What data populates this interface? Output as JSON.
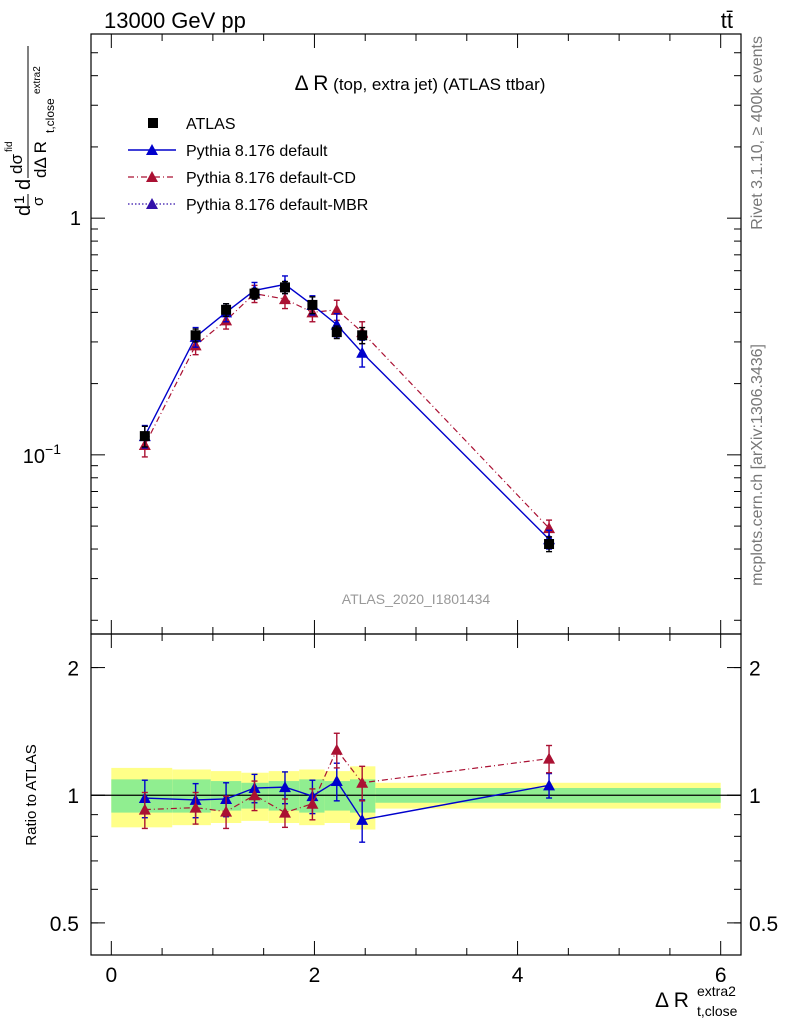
{
  "header": {
    "energy_label": "13000 GeV pp",
    "process_label": "tt̄"
  },
  "side_labels": {
    "rivet": "Rivet 3.1.10, ≥ 400k events",
    "mcplots": "mcplots.cern.ch [arXiv:1306.3436]"
  },
  "main_panel": {
    "title": "Δ R (top, extra jet) (ATLAS ttbar)",
    "title_delta": "Δ R",
    "title_rest": " (top, extra jet) (ATLAS ttbar)",
    "analysis_id": "ATLAS_2020_I1801434",
    "ylabel_parts": {
      "d": "d",
      "one": "1",
      "sigma": "σ",
      "dsigma": "dσ",
      "fid": "fid",
      "dDeltaR": "dΔ R",
      "sub": "t,close",
      "sup": "extra2"
    }
  },
  "ratio_panel": {
    "ylabel": "Ratio to ATLAS"
  },
  "x_axis": {
    "label_main": "Δ R",
    "label_sup": "extra2",
    "label_sub": "t,close"
  },
  "colors": {
    "atlas": "#000000",
    "default": "#0000cc",
    "cd": "#aa1133",
    "mbr": "#3311aa",
    "band_inner": "#90ee90",
    "band_outer": "#ffff88"
  },
  "chart_data": [
    {
      "type": "scatter",
      "panel": "main",
      "title": "Δ R (top, extra jet) (ATLAS ttbar)",
      "xlabel": "Δ R t,close extra2",
      "ylabel": "1/σ dσfid / dΔ R t,close extra2",
      "xlim": [
        -0.2,
        6.2
      ],
      "ylim": [
        0.0175,
        6.0
      ],
      "yscale": "log",
      "xticks": [
        0,
        2,
        4,
        6
      ],
      "yticks": [
        {
          "value": 0.1,
          "base": "10",
          "exp": "−1"
        },
        {
          "value": 1,
          "label": "1"
        }
      ],
      "legend_position": "top-left",
      "x": [
        0.33,
        0.83,
        1.13,
        1.41,
        1.71,
        1.98,
        2.22,
        2.47,
        4.31
      ],
      "series": [
        {
          "name": "ATLAS",
          "marker": "square",
          "line": "none",
          "values": [
            0.12,
            0.32,
            0.41,
            0.48,
            0.51,
            0.43,
            0.33,
            0.32,
            0.042
          ],
          "err": [
            0.012,
            0.02,
            0.025,
            0.025,
            0.03,
            0.035,
            0.02,
            0.025,
            0.003
          ]
        },
        {
          "name": "Pythia 8.176 default",
          "marker": "triangle",
          "line": "solid",
          "values": [
            0.12,
            0.315,
            0.4,
            0.495,
            0.525,
            0.43,
            0.355,
            0.27,
            0.044
          ],
          "err": [
            0.013,
            0.03,
            0.035,
            0.04,
            0.045,
            0.04,
            0.04,
            0.035,
            0.004
          ]
        },
        {
          "name": "Pythia 8.176 default-CD",
          "marker": "triangle",
          "line": "dashdot",
          "values": [
            0.11,
            0.29,
            0.37,
            0.48,
            0.455,
            0.4,
            0.41,
            0.33,
            0.049
          ],
          "err": [
            0.012,
            0.025,
            0.03,
            0.04,
            0.04,
            0.035,
            0.04,
            0.035,
            0.004
          ]
        },
        {
          "name": "Pythia 8.176 default-MBR",
          "marker": "triangle",
          "line": "dotted",
          "values": [],
          "err": []
        }
      ]
    },
    {
      "type": "scatter",
      "panel": "ratio",
      "ylabel": "Ratio to ATLAS",
      "xlim": [
        -0.2,
        6.2
      ],
      "ylim": [
        0.42,
        2.4
      ],
      "yscale": "log",
      "yticks": [
        0.5,
        1,
        2
      ],
      "x": [
        0.33,
        0.83,
        1.13,
        1.41,
        1.71,
        1.98,
        2.22,
        2.47,
        4.31
      ],
      "bands": [
        {
          "xmin": 0.0,
          "xmax": 0.6,
          "inner": [
            0.91,
            1.09
          ],
          "outer": [
            0.84,
            1.16
          ]
        },
        {
          "xmin": 0.6,
          "xmax": 0.98,
          "inner": [
            0.91,
            1.09
          ],
          "outer": [
            0.85,
            1.15
          ]
        },
        {
          "xmin": 0.98,
          "xmax": 1.28,
          "inner": [
            0.92,
            1.08
          ],
          "outer": [
            0.86,
            1.14
          ]
        },
        {
          "xmin": 1.28,
          "xmax": 1.55,
          "inner": [
            0.93,
            1.07
          ],
          "outer": [
            0.87,
            1.13
          ]
        },
        {
          "xmin": 1.55,
          "xmax": 1.85,
          "inner": [
            0.92,
            1.08
          ],
          "outer": [
            0.86,
            1.14
          ]
        },
        {
          "xmin": 1.85,
          "xmax": 2.1,
          "inner": [
            0.91,
            1.09
          ],
          "outer": [
            0.85,
            1.15
          ]
        },
        {
          "xmin": 2.1,
          "xmax": 2.35,
          "inner": [
            0.92,
            1.08
          ],
          "outer": [
            0.86,
            1.14
          ]
        },
        {
          "xmin": 2.35,
          "xmax": 2.6,
          "inner": [
            0.91,
            1.09
          ],
          "outer": [
            0.83,
            1.17
          ]
        },
        {
          "xmin": 2.6,
          "xmax": 6.0,
          "inner": [
            0.96,
            1.04
          ],
          "outer": [
            0.93,
            1.07
          ]
        }
      ],
      "series": [
        {
          "name": "Pythia 8.176 default",
          "values": [
            0.985,
            0.975,
            0.98,
            1.04,
            1.045,
            0.995,
            1.08,
            0.875,
            1.055
          ],
          "err": [
            0.1,
            0.09,
            0.09,
            0.08,
            0.09,
            0.09,
            0.11,
            0.1,
            0.07
          ]
        },
        {
          "name": "Pythia 8.176 default-CD",
          "values": [
            0.925,
            0.935,
            0.915,
            1.0,
            0.91,
            0.955,
            1.28,
            1.07,
            1.22
          ],
          "err": [
            0.09,
            0.08,
            0.08,
            0.08,
            0.07,
            0.08,
            0.12,
            0.1,
            0.09
          ]
        }
      ]
    }
  ]
}
